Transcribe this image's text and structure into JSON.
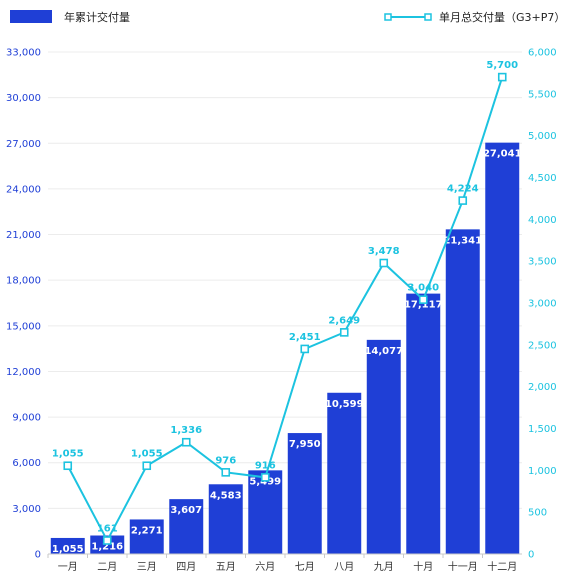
{
  "chart_data": {
    "type": "bar",
    "categories": [
      "一月",
      "二月",
      "三月",
      "四月",
      "五月",
      "六月",
      "七月",
      "八月",
      "九月",
      "十月",
      "十一月",
      "十二月"
    ],
    "series": [
      {
        "name": "年累计交付量",
        "type": "bar",
        "axis": "left",
        "values": [
          1055,
          1216,
          2271,
          3607,
          4583,
          5499,
          7950,
          10599,
          14077,
          17117,
          21341,
          27041
        ],
        "labels": [
          "1,055",
          "1,216",
          "2,271",
          "3,607",
          "4,583",
          "5,499",
          "7,950",
          "10,599",
          "14,077",
          "17,117",
          "21,341",
          "27,041"
        ],
        "color": "#1f3fd6"
      },
      {
        "name": "单月总交付量（G3+P7）",
        "type": "line",
        "axis": "right",
        "values": [
          1055,
          161,
          1055,
          1336,
          976,
          916,
          2451,
          2649,
          3478,
          3040,
          4224,
          5700
        ],
        "labels": [
          "1,055",
          "161",
          "1,055",
          "1,336",
          "976",
          "916",
          "2,451",
          "2,649",
          "3,478",
          "3,040",
          "4,224",
          "5,700"
        ],
        "color": "#1cc3e0"
      }
    ],
    "y_left": {
      "range": [
        0,
        33000
      ],
      "ticks": [
        0,
        3000,
        6000,
        9000,
        12000,
        15000,
        18000,
        21000,
        24000,
        27000,
        30000,
        33000
      ],
      "tick_labels": [
        "0",
        "3,000",
        "6,000",
        "9,000",
        "12,000",
        "15,000",
        "18,000",
        "21,000",
        "24,000",
        "27,000",
        "30,000",
        "33,000"
      ]
    },
    "y_right": {
      "range": [
        0,
        6000
      ],
      "ticks": [
        0,
        500,
        1000,
        1500,
        2000,
        2500,
        3000,
        3500,
        4000,
        4500,
        5000,
        5500,
        6000
      ],
      "tick_labels": [
        "0",
        "500",
        "1,000",
        "1,500",
        "2,000",
        "2,500",
        "3,000",
        "3,500",
        "4,000",
        "4,500",
        "5,000",
        "5,500",
        "6,000"
      ]
    },
    "grid": true,
    "legend": "top"
  }
}
